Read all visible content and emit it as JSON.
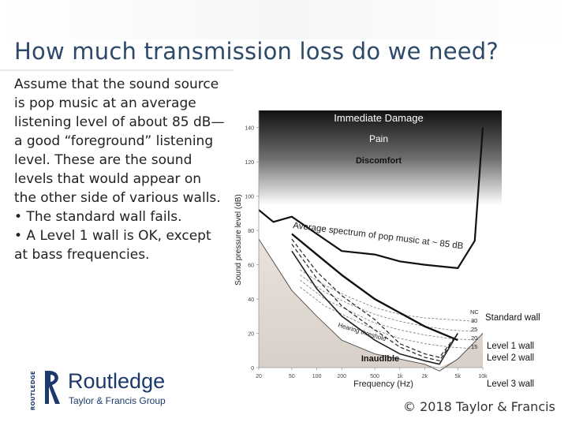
{
  "slide": {
    "title": "How much transmission loss do we need?",
    "body": [
      "Assume that the sound source is pop music at an average listening level of about 85 dB—a good “foreground” listening level. These are the sound levels that would appear on the other side of various walls.",
      "• The standard wall fails.",
      "• A Level 1 wall is OK, except at bass frequencies."
    ],
    "copyright": "© 2018 Taylor & Francis"
  },
  "logo": {
    "name": "Routledge",
    "subtitle": "Taylor & Francis Group",
    "vertical_text": "ROUTLEDGE",
    "color": "#1b3a6b"
  },
  "chart_data": {
    "type": "line",
    "xlabel": "Frequency (Hz)",
    "ylabel": "Sound pressure level (dB)",
    "x_ticks": [
      "20",
      "50",
      "100",
      "200",
      "500",
      "1k",
      "2k",
      "5k",
      "10k"
    ],
    "x_tick_values": [
      20,
      50,
      100,
      200,
      500,
      1000,
      2000,
      5000,
      10000
    ],
    "y_ticks": [
      "0",
      "20",
      "40",
      "60",
      "80",
      "100",
      "120",
      "140"
    ],
    "ylim": [
      0,
      150
    ],
    "region_labels": [
      "Immediate Damage",
      "Pain",
      "Discomfort",
      "Inaudible"
    ],
    "annotations": [
      "Average spectrum of pop music at ~ 85 dB",
      "Hearing threshold"
    ],
    "nc_labels": [
      "NC",
      "30",
      "25",
      "20",
      "15"
    ],
    "series": [
      {
        "name": "Average spectrum of pop music at ~ 85 dB",
        "x": [
          20,
          30,
          50,
          100,
          200,
          500,
          1000,
          2000,
          5000,
          8000,
          10000
        ],
        "y": [
          92,
          85,
          88,
          78,
          68,
          66,
          62,
          60,
          58,
          74,
          140
        ]
      },
      {
        "name": "Standard wall",
        "x": [
          50,
          100,
          200,
          500,
          1000,
          2000,
          5000
        ],
        "y": [
          78,
          66,
          54,
          40,
          32,
          24,
          16
        ]
      },
      {
        "name": "Level 1 wall",
        "x": [
          50,
          100,
          200,
          500,
          1000,
          2000,
          3000,
          5000
        ],
        "y": [
          75,
          56,
          42,
          28,
          14,
          8,
          6,
          20
        ]
      },
      {
        "name": "Level 2 wall",
        "x": [
          50,
          100,
          200,
          500,
          1000,
          2000,
          3000,
          5000
        ],
        "y": [
          72,
          52,
          36,
          22,
          12,
          6,
          4,
          20
        ]
      },
      {
        "name": "Level 3 wall",
        "x": [
          50,
          100,
          200,
          500,
          1000,
          2000,
          3000,
          5000
        ],
        "y": [
          68,
          46,
          30,
          16,
          8,
          4,
          2,
          20
        ]
      },
      {
        "name": "Hearing threshold",
        "x": [
          20,
          50,
          100,
          200,
          500,
          1000,
          2000,
          3000,
          5000,
          8000,
          10000
        ],
        "y": [
          75,
          45,
          30,
          16,
          8,
          5,
          2,
          -2,
          5,
          15,
          20
        ]
      }
    ],
    "nc_curves": [
      {
        "name": "30",
        "x": [
          63,
          125,
          250,
          500,
          1000,
          2000,
          4000,
          8000
        ],
        "y": [
          57,
          48,
          41,
          35,
          31,
          29,
          28,
          27
        ]
      },
      {
        "name": "25",
        "x": [
          63,
          125,
          250,
          500,
          1000,
          2000,
          4000,
          8000
        ],
        "y": [
          54,
          44,
          37,
          31,
          27,
          24,
          22,
          21
        ]
      },
      {
        "name": "20",
        "x": [
          63,
          125,
          250,
          500,
          1000,
          2000,
          4000,
          8000
        ],
        "y": [
          51,
          40,
          33,
          26,
          22,
          19,
          17,
          16
        ]
      },
      {
        "name": "15",
        "x": [
          63,
          125,
          250,
          500,
          1000,
          2000,
          4000,
          8000
        ],
        "y": [
          47,
          36,
          29,
          22,
          17,
          14,
          12,
          11
        ]
      }
    ],
    "legend_placement": "right"
  }
}
